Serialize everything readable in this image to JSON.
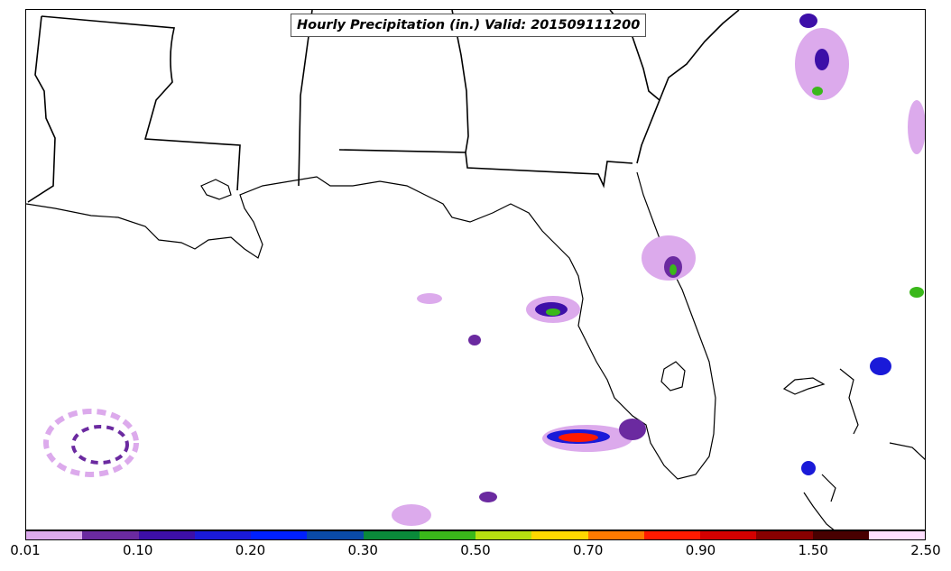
{
  "map": {
    "title": "Hourly Precipitation (in.) Valid: 201509111200"
  },
  "colorbar": {
    "colors": [
      "#dcaaec",
      "#6b2aa0",
      "#3d0fa8",
      "#1a1ad8",
      "#0020ff",
      "#0a4aa8",
      "#0a8a3a",
      "#3ab81a",
      "#b8e010",
      "#ffd800",
      "#ff7a00",
      "#ff1a00",
      "#d40000",
      "#880000",
      "#480000",
      "#ffe0ff"
    ],
    "labels": [
      "0.01",
      "0.10",
      "0.20",
      "0.30",
      "0.50",
      "0.70",
      "0.90",
      "1.50",
      "2.50"
    ]
  }
}
